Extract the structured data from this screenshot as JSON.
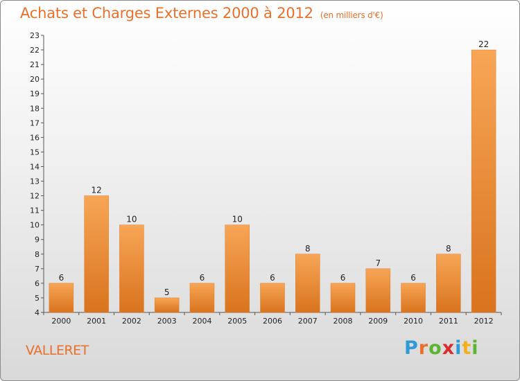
{
  "header": {
    "title": "Achats et Charges Externes 2000 à 2012",
    "unit": "(en milliers d'€)"
  },
  "footer": {
    "commune": "VALLERET",
    "logo": [
      "P",
      "r",
      "o",
      "x",
      "i",
      "t",
      "i"
    ]
  },
  "colors": {
    "accent": "#e8702a",
    "bar_light": "#f7a656",
    "bar_dark": "#d9731e",
    "logo": [
      "#2e9ad6",
      "#e8702a",
      "#5cb531",
      "#d92c2c",
      "#2e9ad6",
      "#f2b01e",
      "#5cb531"
    ]
  },
  "chart_data": {
    "type": "bar",
    "title": "Achats et Charges Externes 2000 à 2012",
    "subtitle": "(en milliers d'€)",
    "categories": [
      "2000",
      "2001",
      "2002",
      "2003",
      "2004",
      "2005",
      "2006",
      "2007",
      "2008",
      "2009",
      "2010",
      "2011",
      "2012"
    ],
    "values": [
      6,
      12,
      10,
      5,
      6,
      10,
      6,
      8,
      6,
      7,
      6,
      8,
      22
    ],
    "ylim": [
      4,
      23
    ],
    "yticks": [
      4,
      5,
      6,
      7,
      8,
      9,
      10,
      11,
      12,
      13,
      14,
      15,
      16,
      17,
      18,
      19,
      20,
      21,
      22,
      23
    ],
    "grid": false,
    "legend": "none"
  }
}
